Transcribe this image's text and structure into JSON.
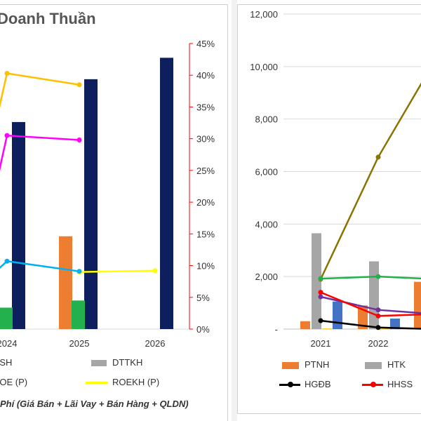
{
  "chart_data": [
    {
      "type": "bar",
      "title": "Doanh Thuần",
      "categories": [
        "2024",
        "2025",
        "2026"
      ],
      "y2_ticks": [
        "0%",
        "5%",
        "10%",
        "15%",
        "20%",
        "25%",
        "30%",
        "35%",
        "40%",
        "45%"
      ],
      "y2lim": [
        0,
        45
      ],
      "series": [
        {
          "name": "DTTKH",
          "kind": "bar",
          "color": "#0d1f5c",
          "values": [
            29,
            35,
            38
          ]
        },
        {
          "kind": "bar",
          "color": "#ed7d31",
          "values": [
            null,
            13,
            null
          ]
        },
        {
          "kind": "bar",
          "color": "#22b14c",
          "values": [
            3,
            4,
            null
          ]
        },
        {
          "name": "ROEKH (P)",
          "kind": "line",
          "color": "#ffff00",
          "values": [
            null,
            9.0,
            9.2
          ]
        },
        {
          "kind": "line",
          "color": "#00b0f0",
          "values": [
            10.7,
            9.1,
            null
          ]
        },
        {
          "kind": "line",
          "color": "#ff00ff",
          "values": [
            30.5,
            29.8,
            null
          ]
        },
        {
          "kind": "line",
          "color": "#ffc000",
          "values": [
            40.3,
            38.5,
            null
          ]
        }
      ],
      "legend": [
        {
          "label": "CSH",
          "swatch": "none",
          "color": "#1f4e79"
        },
        {
          "label": "DTTKH",
          "swatch": "bar",
          "color": "#a6a6a6"
        },
        {
          "label": "ROE (P)",
          "swatch": "none",
          "color": "#7030a0"
        },
        {
          "label": "ROEKH (P)",
          "swatch": "line",
          "color": "#ffff00"
        }
      ],
      "footnote": "Phí (Giá Bán + Lãi Vay + Bán Hàng + QLDN)"
    },
    {
      "type": "bar",
      "categories": [
        "2021",
        "2022"
      ],
      "y_ticks": [
        "-",
        "2,000",
        "4,000",
        "6,000",
        "8,000",
        "10,000",
        "12,000"
      ],
      "ylim": [
        0,
        12000
      ],
      "series": [
        {
          "name": "PTNH",
          "kind": "bar",
          "color": "#ed7d31",
          "values": [
            300,
            900
          ]
        },
        {
          "name": "HTK",
          "kind": "bar",
          "color": "#a6a6a6",
          "values": [
            3650,
            2580
          ]
        },
        {
          "kind": "bar",
          "color": "#ffc000",
          "values": [
            20,
            20
          ]
        },
        {
          "kind": "bar",
          "color": "#4472c4",
          "values": [
            1050,
            400
          ]
        },
        {
          "kind": "line",
          "color": "#8b7300",
          "values": [
            1900,
            6550
          ]
        },
        {
          "kind": "line",
          "color": "#22b14c",
          "values": [
            1920,
            2000
          ]
        },
        {
          "kind": "line",
          "color": "#7030a0",
          "values": [
            1230,
            730
          ]
        },
        {
          "name": "HHSS",
          "kind": "line",
          "color": "#ff0000",
          "values": [
            1400,
            500
          ]
        },
        {
          "name": "HGĐB",
          "kind": "line",
          "color": "#000000",
          "values": [
            320,
            60
          ]
        }
      ],
      "legend": [
        {
          "label": "PTNH",
          "swatch": "bar",
          "color": "#ed7d31"
        },
        {
          "label": "HTK",
          "swatch": "bar",
          "color": "#a6a6a6"
        },
        {
          "label": "HGĐB",
          "swatch": "line",
          "color": "#000000"
        },
        {
          "label": "HHSS",
          "swatch": "line",
          "color": "#ff0000"
        }
      ]
    }
  ]
}
